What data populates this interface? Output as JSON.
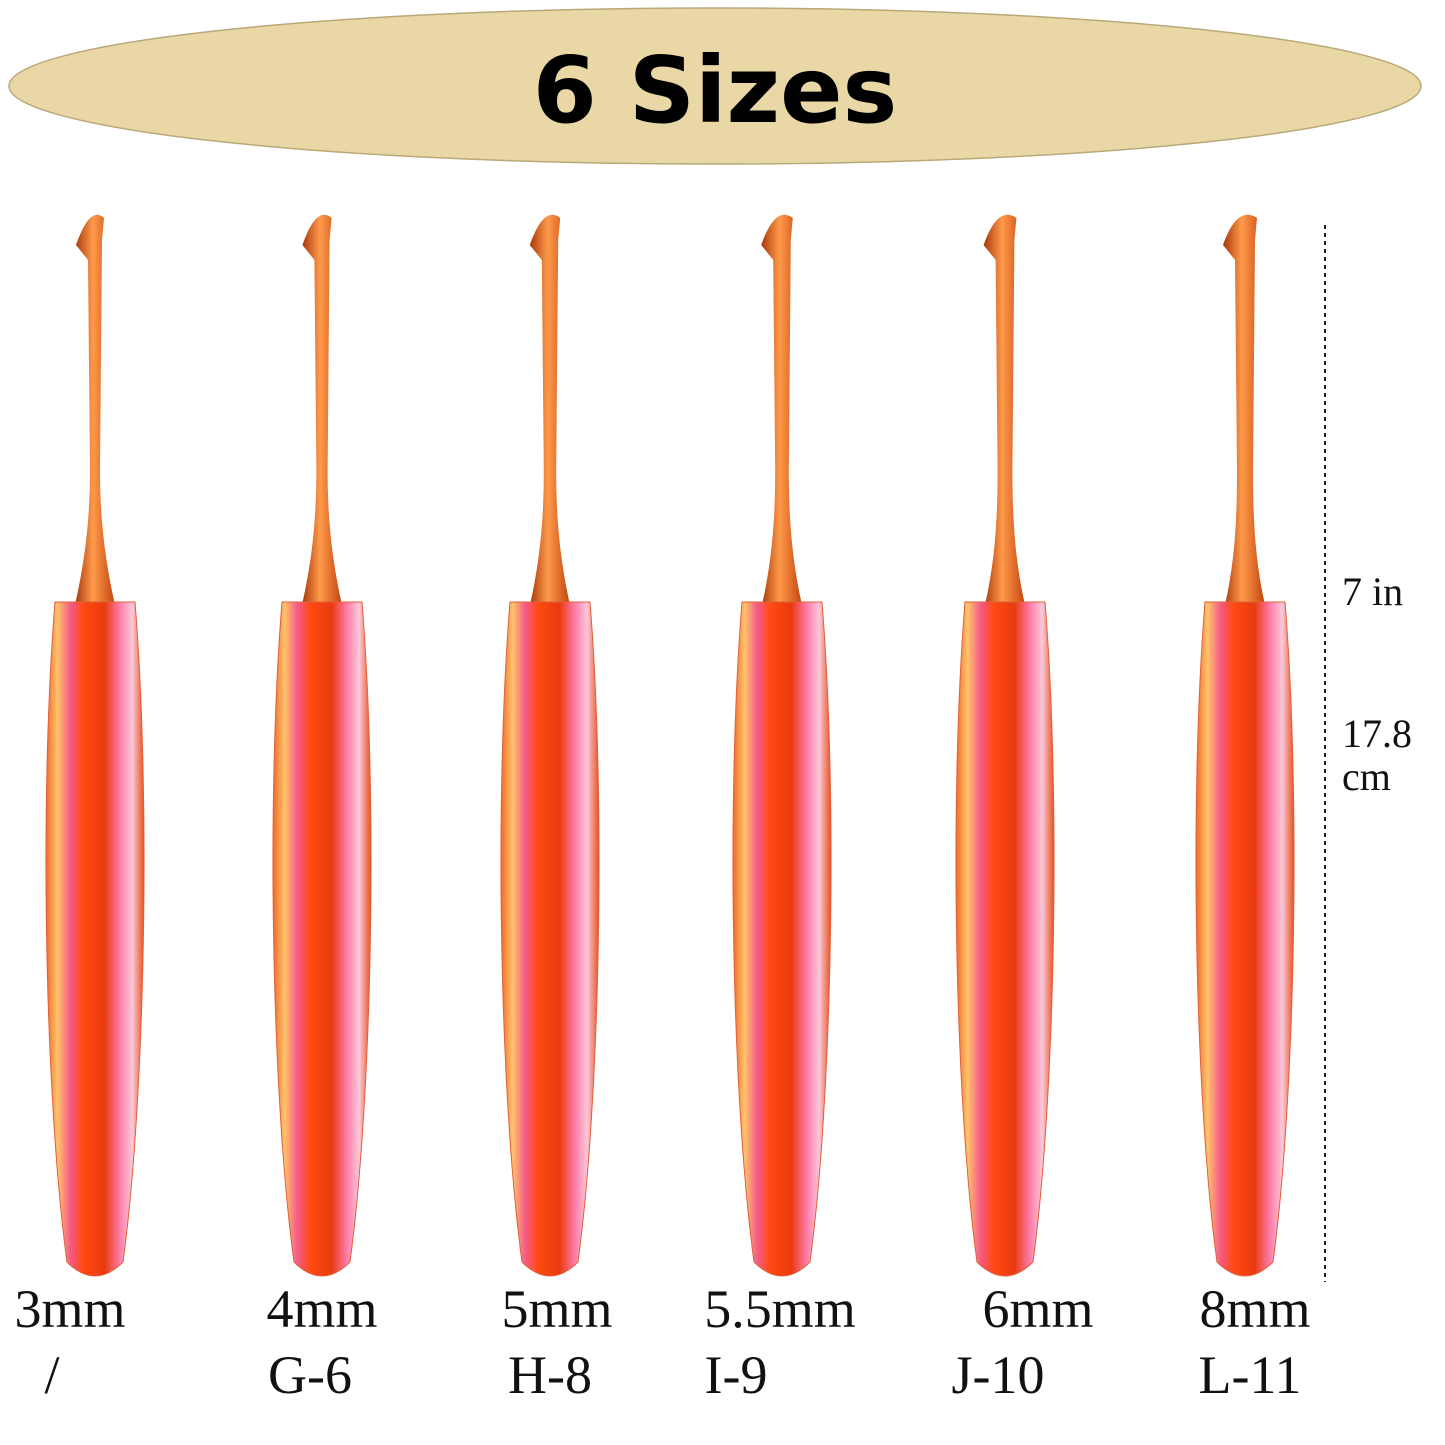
{
  "header": {
    "title": "6 Sizes"
  },
  "hooks": [
    {
      "metric": "3mm",
      "us": "/"
    },
    {
      "metric": "4mm",
      "us": "G-6"
    },
    {
      "metric": "5mm",
      "us": "H-8"
    },
    {
      "metric": "5.5mm",
      "us": "I-9"
    },
    {
      "metric": "6mm",
      "us": "J-10"
    },
    {
      "metric": "8mm",
      "us": "L-11"
    }
  ],
  "dimension": {
    "inches": "7 in",
    "cm_value": "17.8",
    "cm_unit": "cm"
  }
}
